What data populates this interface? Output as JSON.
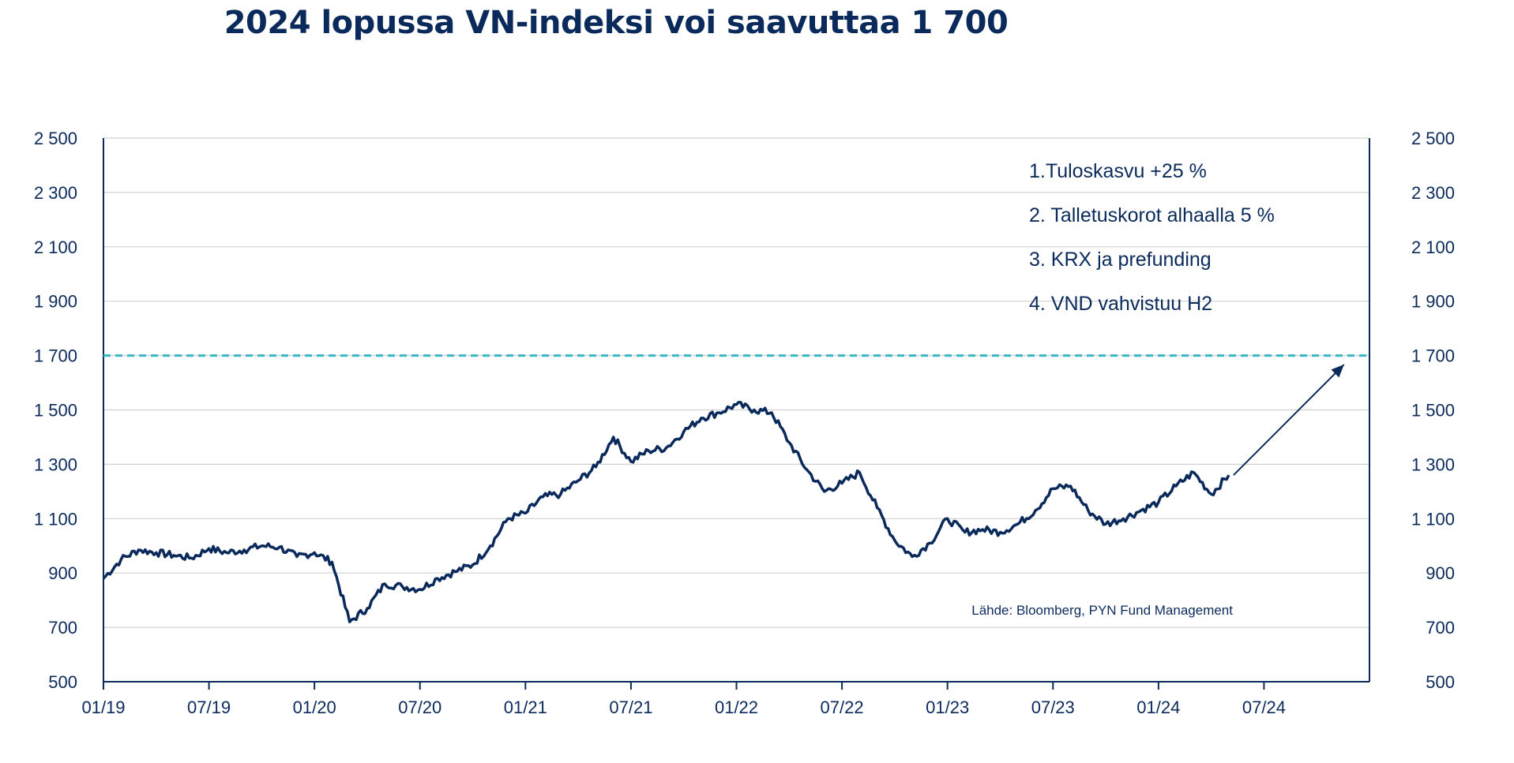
{
  "title": "2024 lopussa VN-indeksi voi saavuttaa 1 700",
  "source": "Lähde: Bloomberg, PYN Fund Management",
  "chart_data": {
    "type": "line",
    "title": "2024 lopussa VN-indeksi voi saavuttaa 1 700",
    "xlabel": "",
    "ylabel": "",
    "ylim": [
      500,
      2500
    ],
    "xlim": [
      "2019-01",
      "2024-12"
    ],
    "grid": true,
    "y_ticks": [
      "2 500",
      "2 300",
      "2 100",
      "1 900",
      "1 700",
      "1 500",
      "1 300",
      "1 100",
      "900",
      "700",
      "500"
    ],
    "y_tick_values": [
      2500,
      2300,
      2100,
      1900,
      1700,
      1500,
      1300,
      1100,
      900,
      700,
      500
    ],
    "x_ticks": [
      "01/19",
      "07/19",
      "01/20",
      "07/20",
      "01/21",
      "07/21",
      "01/22",
      "07/22",
      "01/23",
      "07/23",
      "01/24",
      "07/24"
    ],
    "x_tick_values": [
      "2019-01",
      "2019-07",
      "2020-01",
      "2020-07",
      "2021-01",
      "2021-07",
      "2022-01",
      "2022-07",
      "2023-01",
      "2023-07",
      "2024-01",
      "2024-07"
    ],
    "series": [
      {
        "color": "#0b2a5c",
        "x": [
          "2019-01",
          "2019-02",
          "2019-03",
          "2019-04",
          "2019-05",
          "2019-06",
          "2019-07",
          "2019-08",
          "2019-09",
          "2019-10",
          "2019-11",
          "2019-12",
          "2020-01",
          "2020-02",
          "2020-03",
          "2020-04",
          "2020-05",
          "2020-06",
          "2020-07",
          "2020-08",
          "2020-09",
          "2020-10",
          "2020-11",
          "2020-12",
          "2021-01",
          "2021-02",
          "2021-03",
          "2021-04",
          "2021-05",
          "2021-06",
          "2021-07",
          "2021-08",
          "2021-09",
          "2021-10",
          "2021-11",
          "2021-12",
          "2022-01",
          "2022-02",
          "2022-03",
          "2022-04",
          "2022-05",
          "2022-06",
          "2022-07",
          "2022-08",
          "2022-09",
          "2022-10",
          "2022-11",
          "2022-12",
          "2023-01",
          "2023-02",
          "2023-03",
          "2023-04",
          "2023-05",
          "2023-06",
          "2023-07",
          "2023-08",
          "2023-09",
          "2023-10",
          "2023-11",
          "2023-12",
          "2024-01",
          "2024-02",
          "2024-03",
          "2024-04",
          "2024-05"
        ],
        "values": [
          880,
          950,
          985,
          975,
          965,
          955,
          990,
          975,
          985,
          1000,
          995,
          960,
          975,
          940,
          720,
          770,
          860,
          850,
          840,
          880,
          905,
          930,
          1000,
          1100,
          1120,
          1180,
          1190,
          1240,
          1290,
          1400,
          1310,
          1350,
          1360,
          1420,
          1470,
          1490,
          1520,
          1500,
          1490,
          1380,
          1280,
          1200,
          1230,
          1270,
          1140,
          1020,
          960,
          1010,
          1100,
          1050,
          1060,
          1050,
          1080,
          1130,
          1210,
          1220,
          1130,
          1080,
          1100,
          1130,
          1160,
          1220,
          1270,
          1190,
          1260
        ]
      }
    ],
    "target": {
      "value": 1700,
      "label": "1 700",
      "color": "#37b8c6",
      "style": "dashed"
    },
    "arrow": {
      "from": [
        "2024-05",
        1260
      ],
      "to": [
        "2024-12",
        1690
      ]
    },
    "annotations": [
      "1.Tuloskasvu +25 %",
      "2. Talletuskorot alhaalla 5 %",
      "3. KRX ja prefunding",
      "4. VND vahvistuu H2"
    ],
    "axes": {
      "left": true,
      "right": true,
      "bottom": true
    }
  }
}
